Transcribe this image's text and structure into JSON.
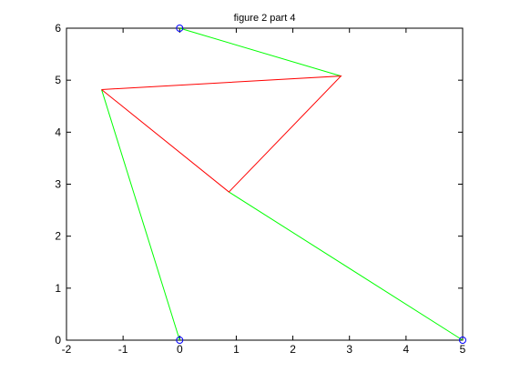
{
  "chart_data": {
    "type": "line",
    "title": "figure 2 part 4",
    "xlabel": "",
    "ylabel": "",
    "xlim": [
      -2,
      5
    ],
    "ylim": [
      0,
      6
    ],
    "xticks": [
      -2,
      -1,
      0,
      1,
      2,
      3,
      4,
      5
    ],
    "yticks": [
      0,
      1,
      2,
      3,
      4,
      5,
      6
    ],
    "xtick_labels": [
      "-2",
      "-1",
      "0",
      "1",
      "2",
      "3",
      "4",
      "5"
    ],
    "ytick_labels": [
      "0",
      "1",
      "2",
      "3",
      "4",
      "5",
      "6"
    ],
    "grid": false,
    "legend": "none",
    "series": [
      {
        "color": "#00ff00",
        "kind": "line",
        "segments": [
          [
            [
              0,
              6
            ],
            [
              2.85,
              5.08
            ]
          ],
          [
            [
              0,
              0
            ],
            [
              -1.38,
              4.82
            ]
          ],
          [
            [
              5,
              0
            ],
            [
              0.87,
              2.85
            ]
          ]
        ]
      },
      {
        "color": "#ff0000",
        "kind": "line",
        "points": [
          [
            -1.38,
            4.82
          ],
          [
            2.85,
            5.08
          ],
          [
            0.87,
            2.85
          ],
          [
            -1.38,
            4.82
          ]
        ]
      },
      {
        "color": "#0000ff",
        "kind": "markers",
        "marker": "circle",
        "points": [
          [
            0,
            6
          ],
          [
            0,
            0
          ],
          [
            5,
            0
          ]
        ]
      }
    ]
  }
}
